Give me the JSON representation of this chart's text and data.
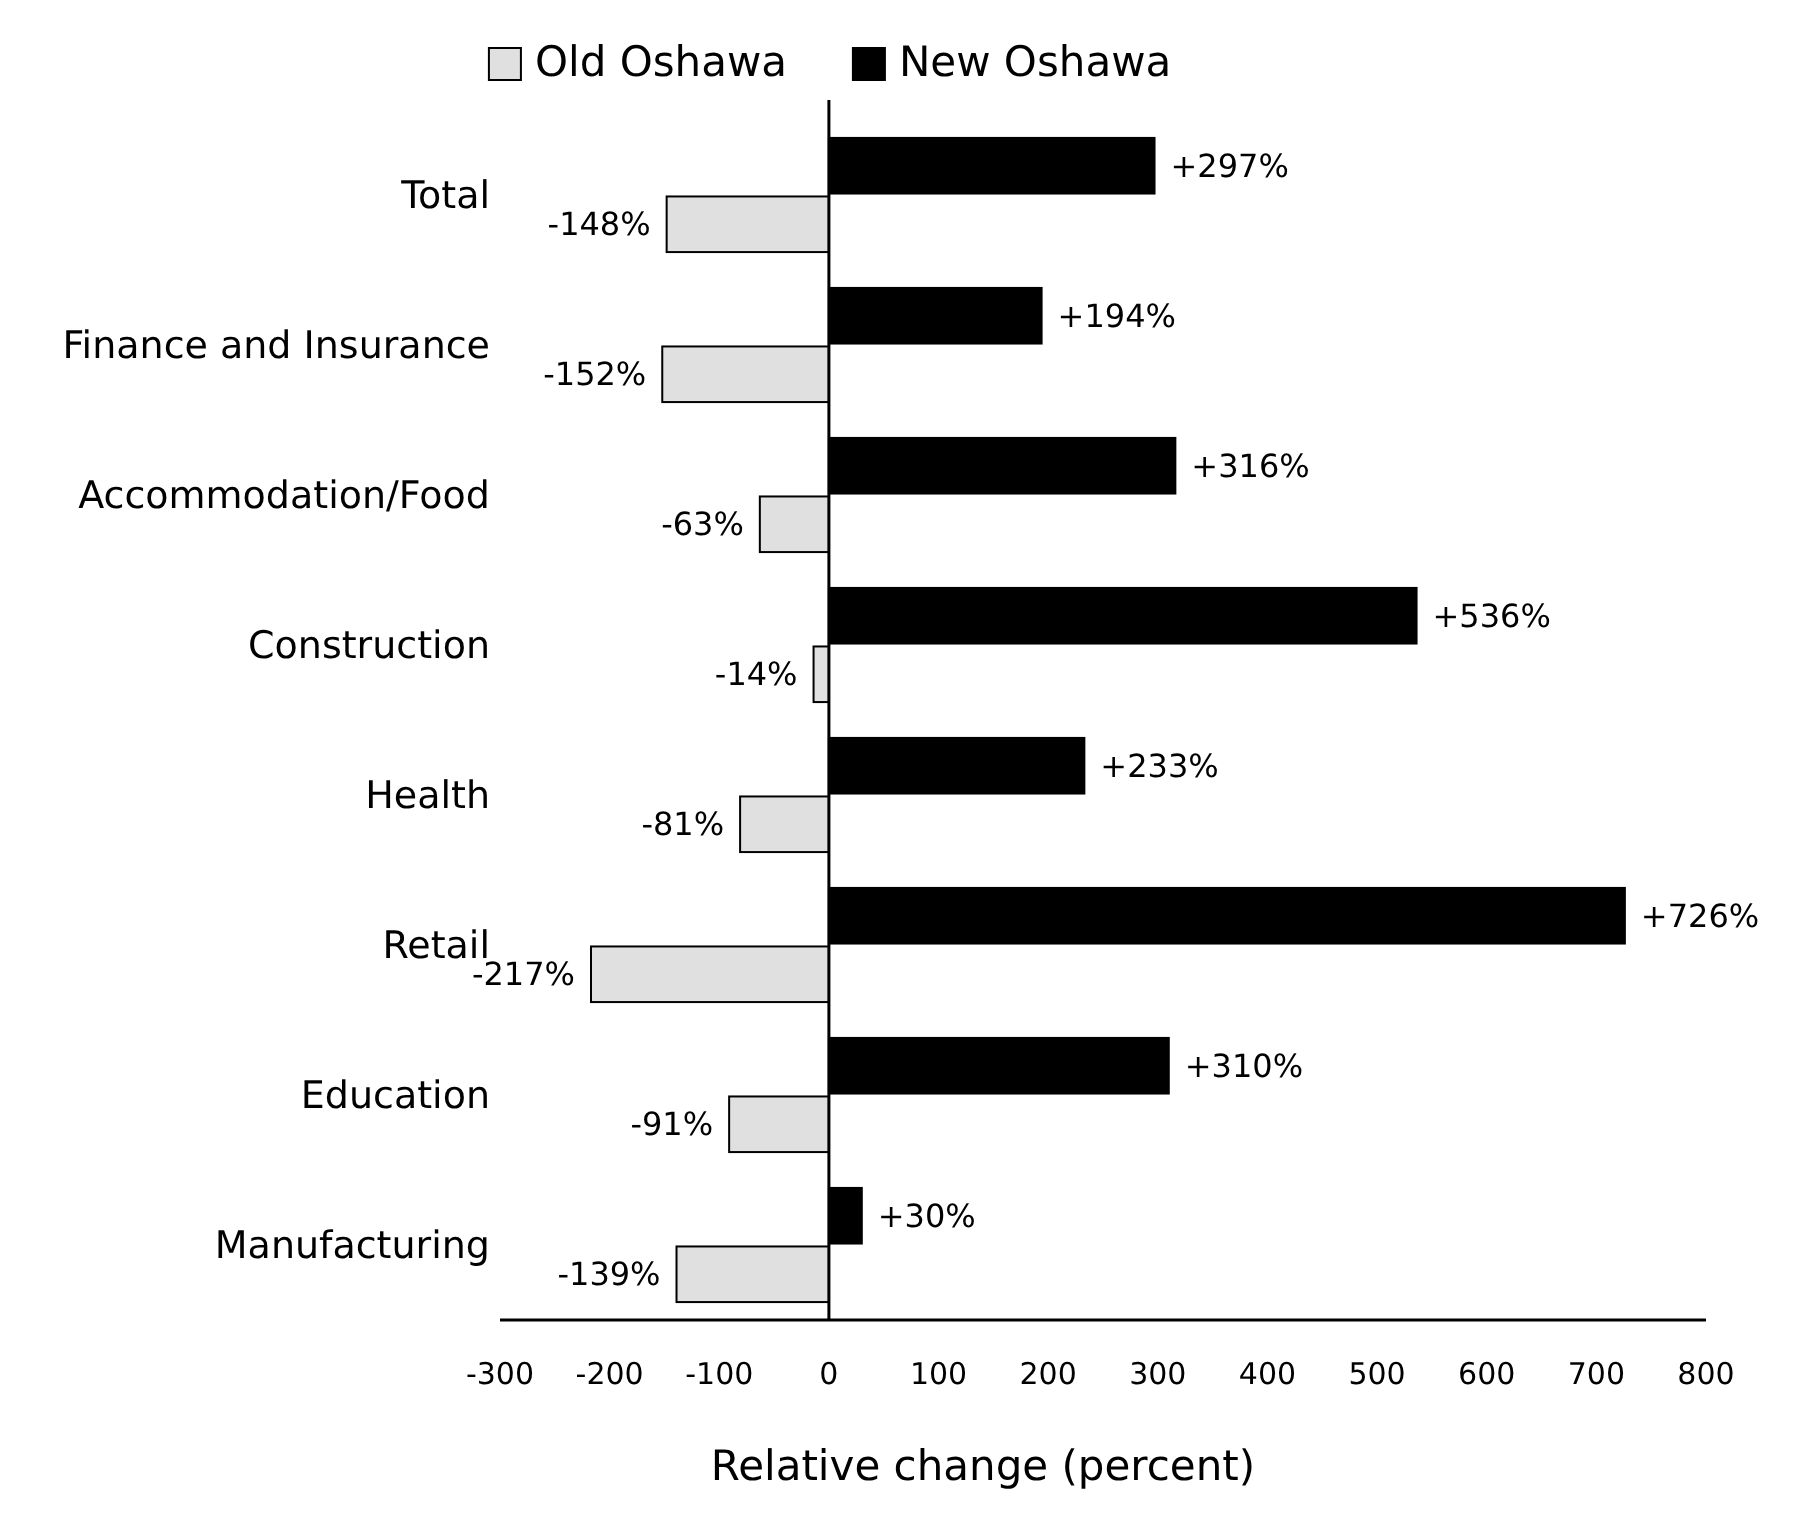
{
  "chart_data": {
    "type": "bar",
    "orientation": "horizontal",
    "xlabel": "Relative change (percent)",
    "categories": [
      "Total",
      "Finance and Insurance",
      "Accommodation/Food",
      "Construction",
      "Health",
      "Retail",
      "Education",
      "Manufacturing"
    ],
    "series": [
      {
        "name": "New Oshawa",
        "color": "#000000",
        "values": [
          297,
          194,
          316,
          536,
          233,
          726,
          310,
          30
        ],
        "value_labels": [
          "+297%",
          "+194%",
          "+316%",
          "+536%",
          "+233%",
          "+726%",
          "+310%",
          "+30%"
        ]
      },
      {
        "name": "Old Oshawa",
        "color": "#e0e0e0",
        "values": [
          -148,
          -152,
          -63,
          -14,
          -81,
          -217,
          -91,
          -139
        ],
        "value_labels": [
          "-148%",
          "-152%",
          "-63%",
          "-14%",
          "-81%",
          "-217%",
          "-91%",
          "-139%"
        ]
      }
    ],
    "xlim": [
      -300,
      800
    ],
    "xticks": [
      -300,
      -200,
      -100,
      0,
      100,
      200,
      300,
      400,
      500,
      600,
      700,
      800
    ],
    "legend": "top"
  }
}
